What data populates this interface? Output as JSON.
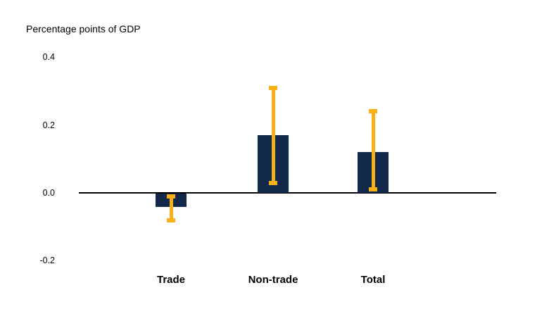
{
  "chart_data": {
    "type": "bar",
    "title": "",
    "xlabel": "",
    "ylabel": "Percentage points of GDP",
    "categories": [
      "Trade",
      "Non-trade",
      "Total"
    ],
    "values": [
      -0.04,
      0.17,
      0.12
    ],
    "error_bars": {
      "low": [
        -0.08,
        0.03,
        0.01
      ],
      "high": [
        -0.01,
        0.31,
        0.24
      ]
    },
    "yticks": [
      "0.4",
      "0.2",
      "0.0",
      "-0.2"
    ],
    "ylim": [
      -0.27,
      0.45
    ],
    "grid": false,
    "legend": "none",
    "colors": {
      "bar": "#12294B",
      "error_bar": "#F9B017",
      "axis": "#000000",
      "text": "#000000",
      "background": "#FFFFFF"
    }
  }
}
